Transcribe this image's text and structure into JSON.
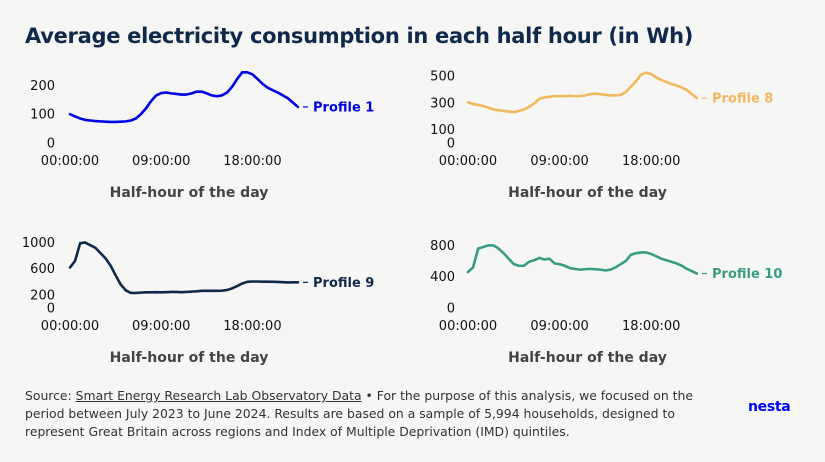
{
  "title": "Average electricity consumption in each half hour (in Wh)",
  "footer": {
    "source_prefix": "Source: ",
    "source_link": "Smart Energy Research Lab Observatory Data",
    "source_text": " • For the purpose of this analysis, we focused on the period between July 2023 to June 2024. Results are based on a sample of 5,994 households, designed to represent Great Britain across regions and Index of Multiple Deprivation (IMD) quintiles."
  },
  "logo": "nesta",
  "colors": {
    "background": "#f6f6f4",
    "title": "#0f294a",
    "profile_1": "#0000e6",
    "profile_8": "#f2b85c",
    "profile_9": "#0f294a",
    "profile_10": "#3b9c84"
  },
  "chart_data": [
    {
      "type": "line",
      "series_name": "Profile 1",
      "color": "#0000e6",
      "xlabel": "Half-hour of the day",
      "x_ticks": [
        "00:00:00",
        "09:00:00",
        "18:00:00"
      ],
      "x_tick_positions": [
        0,
        18,
        36
      ],
      "y_ticks": [
        0,
        100,
        200
      ],
      "ylim": [
        0,
        260
      ],
      "values": [
        100,
        92,
        85,
        80,
        78,
        76,
        75,
        74,
        73,
        73,
        74,
        75,
        78,
        85,
        100,
        120,
        145,
        165,
        173,
        175,
        172,
        170,
        168,
        168,
        172,
        178,
        178,
        172,
        165,
        162,
        165,
        175,
        195,
        222,
        245,
        245,
        238,
        222,
        205,
        192,
        183,
        175,
        165,
        155,
        140,
        125
      ]
    },
    {
      "type": "line",
      "series_name": "Profile 8",
      "color": "#f2b85c",
      "xlabel": "Half-hour of the day",
      "x_ticks": [
        "00:00:00",
        "09:00:00",
        "18:00:00"
      ],
      "x_tick_positions": [
        0,
        18,
        36
      ],
      "y_ticks": [
        0,
        100,
        300,
        500
      ],
      "ylim": [
        0,
        560
      ],
      "values": [
        305,
        290,
        285,
        275,
        265,
        250,
        245,
        240,
        235,
        230,
        240,
        250,
        270,
        295,
        330,
        340,
        345,
        350,
        350,
        350,
        352,
        350,
        350,
        355,
        365,
        368,
        365,
        360,
        355,
        355,
        360,
        380,
        420,
        460,
        510,
        525,
        515,
        490,
        470,
        455,
        440,
        430,
        415,
        395,
        365,
        335
      ]
    },
    {
      "type": "line",
      "series_name": "Profile 9",
      "color": "#0f294a",
      "xlabel": "Half-hour of the day",
      "x_ticks": [
        "00:00:00",
        "09:00:00",
        "18:00:00"
      ],
      "x_tick_positions": [
        0,
        18,
        36
      ],
      "y_ticks": [
        0,
        200,
        600,
        1000
      ],
      "ylim": [
        0,
        1100
      ],
      "values": [
        620,
        720,
        990,
        1000,
        960,
        920,
        840,
        760,
        650,
        500,
        360,
        270,
        230,
        230,
        235,
        240,
        240,
        242,
        240,
        242,
        245,
        245,
        242,
        245,
        250,
        255,
        262,
        262,
        262,
        262,
        265,
        275,
        300,
        335,
        375,
        400,
        405,
        405,
        402,
        402,
        400,
        398,
        395,
        390,
        392,
        392
      ]
    },
    {
      "type": "line",
      "series_name": "Profile 10",
      "color": "#3b9c84",
      "xlabel": "Half-hour of the day",
      "x_ticks": [
        "00:00:00",
        "09:00:00",
        "18:00:00"
      ],
      "x_tick_positions": [
        0,
        18,
        36
      ],
      "y_ticks": [
        0,
        400,
        800
      ],
      "ylim": [
        0,
        920
      ],
      "values": [
        460,
        520,
        760,
        780,
        800,
        800,
        760,
        700,
        630,
        560,
        540,
        540,
        590,
        610,
        640,
        620,
        630,
        570,
        560,
        540,
        510,
        500,
        490,
        495,
        500,
        495,
        490,
        480,
        490,
        520,
        560,
        600,
        680,
        700,
        710,
        710,
        690,
        660,
        630,
        610,
        590,
        570,
        540,
        500,
        470,
        440
      ]
    }
  ]
}
